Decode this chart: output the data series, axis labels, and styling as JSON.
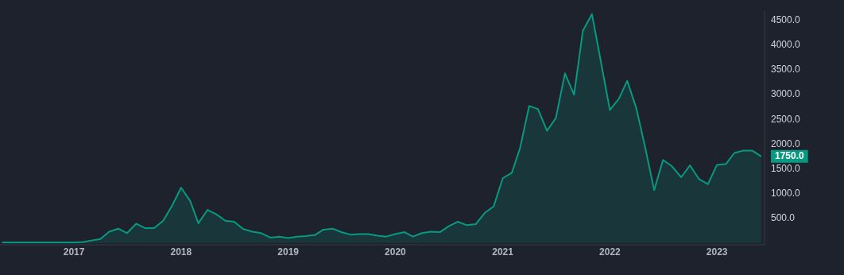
{
  "chart_data": {
    "type": "area",
    "x": [
      "2016-05",
      "2016-06",
      "2016-07",
      "2016-08",
      "2016-09",
      "2016-10",
      "2016-11",
      "2016-12",
      "2017-01",
      "2017-02",
      "2017-03",
      "2017-04",
      "2017-05",
      "2017-06",
      "2017-07",
      "2017-08",
      "2017-09",
      "2017-10",
      "2017-11",
      "2017-12",
      "2018-01",
      "2018-02",
      "2018-03",
      "2018-04",
      "2018-05",
      "2018-06",
      "2018-07",
      "2018-08",
      "2018-09",
      "2018-10",
      "2018-11",
      "2018-12",
      "2019-01",
      "2019-02",
      "2019-03",
      "2019-04",
      "2019-05",
      "2019-06",
      "2019-07",
      "2019-08",
      "2019-09",
      "2019-10",
      "2019-11",
      "2019-12",
      "2020-01",
      "2020-02",
      "2020-03",
      "2020-04",
      "2020-05",
      "2020-06",
      "2020-07",
      "2020-08",
      "2020-09",
      "2020-10",
      "2020-11",
      "2020-12",
      "2021-01",
      "2021-02",
      "2021-03",
      "2021-04",
      "2021-05",
      "2021-06",
      "2021-07",
      "2021-08",
      "2021-09",
      "2021-10",
      "2021-11",
      "2021-12",
      "2022-01",
      "2022-02",
      "2022-03",
      "2022-04",
      "2022-05",
      "2022-06",
      "2022-07",
      "2022-08",
      "2022-09",
      "2022-10",
      "2022-11",
      "2022-12",
      "2023-01",
      "2023-02",
      "2023-03",
      "2023-04",
      "2023-05",
      "2023-06"
    ],
    "series": [
      {
        "color": "#089981",
        "values": [
          10,
          10,
          10,
          10,
          10,
          10,
          10,
          10,
          10,
          20,
          50,
          80,
          230,
          290,
          200,
          390,
          300,
          300,
          450,
          750,
          1120,
          850,
          400,
          670,
          580,
          450,
          430,
          280,
          230,
          200,
          110,
          130,
          100,
          130,
          140,
          160,
          270,
          290,
          220,
          170,
          180,
          180,
          150,
          130,
          180,
          220,
          130,
          200,
          230,
          220,
          340,
          430,
          360,
          380,
          610,
          740,
          1310,
          1420,
          1920,
          2770,
          2710,
          2270,
          2530,
          3430,
          3000,
          4290,
          4630,
          3680,
          2690,
          2920,
          3280,
          2730,
          1940,
          1070,
          1680,
          1550,
          1330,
          1570,
          1290,
          1190,
          1580,
          1600,
          1820,
          1870,
          1870,
          1750
        ]
      }
    ],
    "xlim": [
      "2016-04-24",
      "2023-06-12"
    ],
    "xticks": [
      "2017",
      "2018",
      "2019",
      "2020",
      "2021",
      "2022",
      "2023"
    ],
    "ylim": [
      -30,
      4670
    ],
    "yticks": [
      {
        "value": 500,
        "label": "500.0"
      },
      {
        "value": 1000,
        "label": "1000.0"
      },
      {
        "value": 1500,
        "label": "1500.0"
      },
      {
        "value": 2000,
        "label": "2000.0"
      },
      {
        "value": 2500,
        "label": "2500.0"
      },
      {
        "value": 3000,
        "label": "3000.0"
      },
      {
        "value": 3500,
        "label": "3500.0"
      },
      {
        "value": 4000,
        "label": "4000.0"
      },
      {
        "value": 4500,
        "label": "4500.0"
      }
    ],
    "annotations": [
      {
        "text": "1750.0",
        "x": "2023-06",
        "y": 1750
      }
    ],
    "grid": false,
    "legend": false,
    "marker": "none",
    "line_style": "solid"
  }
}
